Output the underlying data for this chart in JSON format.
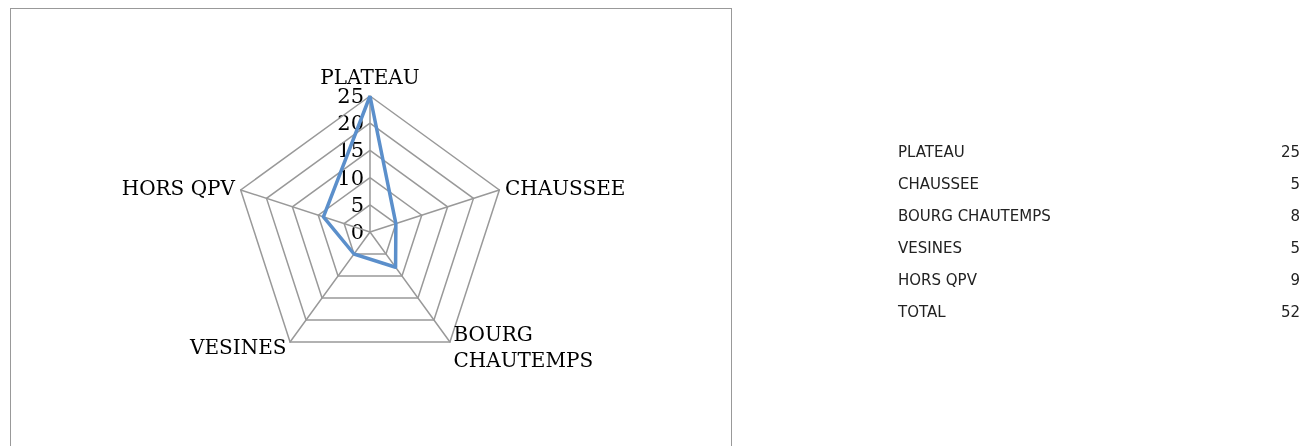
{
  "chart_data": [
    {
      "type": "radar",
      "categories": [
        "PLATEAU",
        "CHAUSSEE",
        "BOURG CHAUTEMPS",
        "VESINES",
        "HORS QPV"
      ],
      "series": [
        {
          "color": "#5b8fcb",
          "values": [
            25,
            5,
            8,
            5,
            9
          ]
        }
      ],
      "ylim": [
        0,
        25
      ],
      "yticks": [
        0,
        5,
        10,
        15,
        20,
        25
      ],
      "grid": true,
      "marker": "none"
    },
    {
      "type": "other",
      "categories": [
        "PLATEAU",
        "CHAUSSEE",
        "BOURG CHAUTEMPS",
        "VESINES",
        "HORS QPV",
        "TOTAL"
      ],
      "values": [
        25,
        5,
        8,
        5,
        9,
        52
      ],
      "data_labels": true
    }
  ]
}
